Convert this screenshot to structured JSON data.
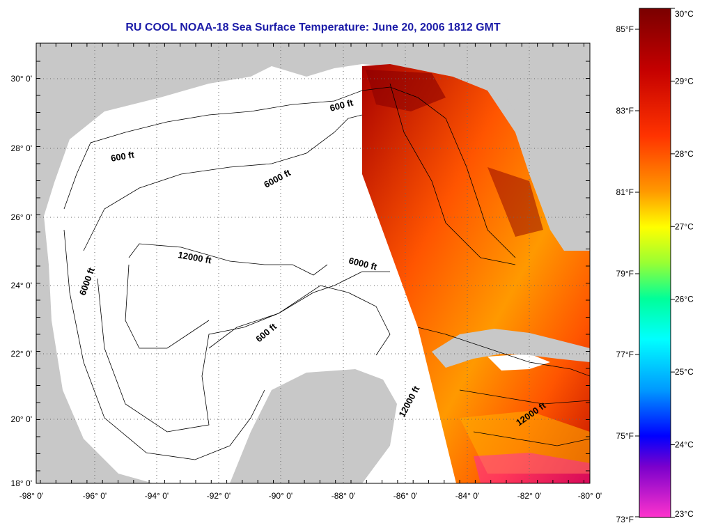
{
  "title": "RU COOL  NOAA-18  Sea Surface Temperature:  June 20, 2006 1812 GMT",
  "axes": {
    "lon_labels": [
      "-98° 0'",
      "-96° 0'",
      "-94° 0'",
      "-92° 0'",
      "-90° 0'",
      "-88° 0'",
      "-86° 0'",
      "-84° 0'",
      "-82° 0'",
      "-80° 0'"
    ],
    "lat_labels": [
      "30° 0'",
      "28° 0'",
      "26° 0'",
      "24° 0'",
      "22° 0'",
      "20° 0'",
      "18° 0'"
    ]
  },
  "contour_labels": [
    "600 ft",
    "600 ft",
    "6000 ft",
    "12000 ft",
    "6000 ft",
    "6000 ft",
    "600 ft",
    "12000 ft",
    "12000 ft"
  ],
  "colorbar": {
    "celsius_labels": [
      "30°C",
      "29°C",
      "28°C",
      "27°C",
      "26°C",
      "25°C",
      "24°C",
      "23°C"
    ],
    "fahrenheit_labels": [
      "85°F",
      "83°F",
      "81°F",
      "79°F",
      "77°F",
      "75°F",
      "73°F"
    ]
  },
  "colors": {
    "land": "#c8c8c8",
    "title": "#1c1ca8",
    "sst_warm": "#8b0000",
    "sst_mid": "#ff8c00",
    "sst_cool": "#ff00ff"
  }
}
